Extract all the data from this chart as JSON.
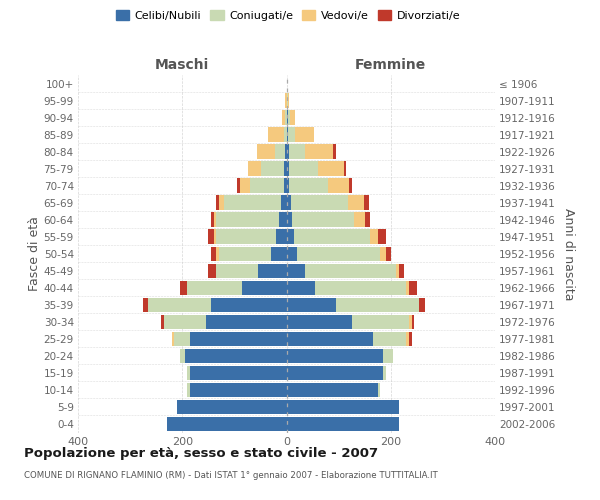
{
  "age_groups": [
    "0-4",
    "5-9",
    "10-14",
    "15-19",
    "20-24",
    "25-29",
    "30-34",
    "35-39",
    "40-44",
    "45-49",
    "50-54",
    "55-59",
    "60-64",
    "65-69",
    "70-74",
    "75-79",
    "80-84",
    "85-89",
    "90-94",
    "95-99",
    "100+"
  ],
  "birth_years": [
    "2002-2006",
    "1997-2001",
    "1992-1996",
    "1987-1991",
    "1982-1986",
    "1977-1981",
    "1972-1976",
    "1967-1971",
    "1962-1966",
    "1957-1961",
    "1952-1956",
    "1947-1951",
    "1942-1946",
    "1937-1941",
    "1932-1936",
    "1927-1931",
    "1922-1926",
    "1917-1921",
    "1912-1916",
    "1907-1911",
    "≤ 1906"
  ],
  "colors": {
    "celibi": "#3a6fa8",
    "coniugati": "#c9dab3",
    "vedovi": "#f5c97e",
    "divorziati": "#c0392b"
  },
  "males": {
    "celibi": [
      230,
      210,
      185,
      185,
      195,
      185,
      155,
      145,
      85,
      55,
      30,
      20,
      15,
      10,
      5,
      4,
      2,
      0,
      0,
      0,
      0
    ],
    "coniugati": [
      0,
      0,
      5,
      5,
      10,
      30,
      80,
      120,
      105,
      80,
      100,
      115,
      120,
      110,
      65,
      45,
      20,
      5,
      3,
      0,
      0
    ],
    "vedovi": [
      0,
      0,
      0,
      0,
      0,
      5,
      0,
      0,
      0,
      0,
      5,
      5,
      5,
      10,
      20,
      25,
      35,
      30,
      5,
      2,
      0
    ],
    "divorziati": [
      0,
      0,
      0,
      0,
      0,
      0,
      5,
      10,
      15,
      15,
      10,
      10,
      5,
      5,
      5,
      0,
      0,
      0,
      0,
      0,
      0
    ]
  },
  "females": {
    "nubili": [
      215,
      215,
      175,
      185,
      185,
      165,
      125,
      95,
      55,
      35,
      20,
      15,
      10,
      8,
      5,
      5,
      5,
      2,
      2,
      0,
      0
    ],
    "coniugate": [
      0,
      0,
      5,
      5,
      20,
      65,
      110,
      160,
      175,
      175,
      160,
      145,
      120,
      110,
      75,
      55,
      30,
      15,
      5,
      2,
      0
    ],
    "vedove": [
      0,
      0,
      0,
      0,
      0,
      5,
      5,
      0,
      5,
      5,
      10,
      15,
      20,
      30,
      40,
      50,
      55,
      35,
      10,
      2,
      0
    ],
    "divorziate": [
      0,
      0,
      0,
      0,
      0,
      5,
      5,
      10,
      15,
      10,
      10,
      15,
      10,
      10,
      5,
      5,
      5,
      0,
      0,
      0,
      0
    ]
  },
  "xlim": 400,
  "title": "Popolazione per età, sesso e stato civile - 2007",
  "subtitle": "COMUNE DI RIGNANO FLAMINIO (RM) - Dati ISTAT 1° gennaio 2007 - Elaborazione TUTTITALIA.IT",
  "ylabel_left": "Fasce di età",
  "ylabel_right": "Anni di nascita",
  "xlabel_left": "Maschi",
  "xlabel_right": "Femmine",
  "bg_color": "#ffffff",
  "grid_color": "#cccccc"
}
